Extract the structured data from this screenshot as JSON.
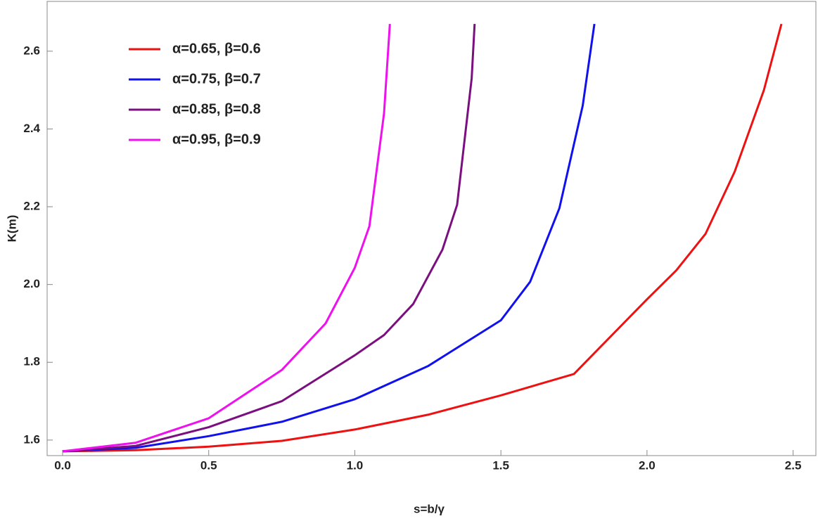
{
  "chart_data": {
    "type": "line",
    "x_label": "s=b/γ",
    "y_label": "K(m)",
    "xlim": [
      -0.053,
      2.578
    ],
    "ylim": [
      1.56,
      2.728
    ],
    "xticks": [
      {
        "value": 0,
        "label": "0.0"
      },
      0.5,
      {
        "value": 1,
        "label": "1.0"
      },
      1.5,
      {
        "value": 2,
        "label": "2.0"
      },
      2.5
    ],
    "yticks": [
      1.6,
      1.8,
      {
        "value": 2,
        "label": "2.0"
      },
      2.2,
      2.4,
      2.6
    ],
    "legend": "top-left",
    "series": [
      {
        "name": "α=0.65, β=0.6",
        "color": "#ee1111",
        "x": [
          0,
          0.25,
          0.5,
          0.75,
          1.0,
          1.25,
          1.5,
          1.75,
          2.0,
          2.1,
          2.2,
          2.3,
          2.4,
          2.46
        ],
        "values": [
          1.571,
          1.574,
          1.583,
          1.598,
          1.627,
          1.665,
          1.715,
          1.77,
          1.962,
          2.036,
          2.13,
          2.29,
          2.5,
          2.67
        ]
      },
      {
        "name": "α=0.75, β=0.7",
        "color": "#1111ee",
        "x": [
          0,
          0.25,
          0.5,
          0.75,
          1.0,
          1.25,
          1.5,
          1.6,
          1.7,
          1.78,
          1.82
        ],
        "values": [
          1.571,
          1.58,
          1.61,
          1.647,
          1.705,
          1.79,
          1.908,
          2.007,
          2.196,
          2.46,
          2.67
        ]
      },
      {
        "name": "α=0.85, β=0.8",
        "color": "#7b0f80",
        "x": [
          0,
          0.25,
          0.5,
          0.75,
          1.0,
          1.1,
          1.2,
          1.3,
          1.35,
          1.4,
          1.41
        ],
        "values": [
          1.571,
          1.585,
          1.633,
          1.7,
          1.818,
          1.87,
          1.95,
          2.09,
          2.205,
          2.53,
          2.67
        ]
      },
      {
        "name": "α=0.95, β=0.9",
        "color": "#ee11ee",
        "x": [
          0,
          0.25,
          0.5,
          0.75,
          0.9,
          1.0,
          1.05,
          1.1,
          1.12
        ],
        "values": [
          1.571,
          1.593,
          1.656,
          1.78,
          1.9,
          2.043,
          2.15,
          2.44,
          2.67
        ]
      }
    ]
  }
}
